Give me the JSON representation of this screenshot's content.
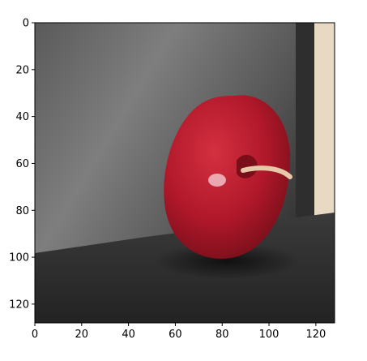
{
  "figure": {
    "x_ticks": [
      "0",
      "20",
      "40",
      "60",
      "80",
      "100",
      "120"
    ],
    "y_ticks": [
      "0",
      "20",
      "40",
      "60",
      "80",
      "100",
      "120"
    ],
    "x_range": [
      0,
      128
    ],
    "y_range": [
      128,
      0
    ]
  },
  "image": {
    "subject": "red apple on dark surface against gray wall",
    "colors": {
      "wall_light": "#8a8a8a",
      "wall_dark": "#3a3a3a",
      "floor": "#2a2a2a",
      "apple_red": "#b0182a",
      "apple_dark": "#6e0d17",
      "highlight": "#f2c0c6",
      "background_right": "#e8d9c2"
    }
  }
}
